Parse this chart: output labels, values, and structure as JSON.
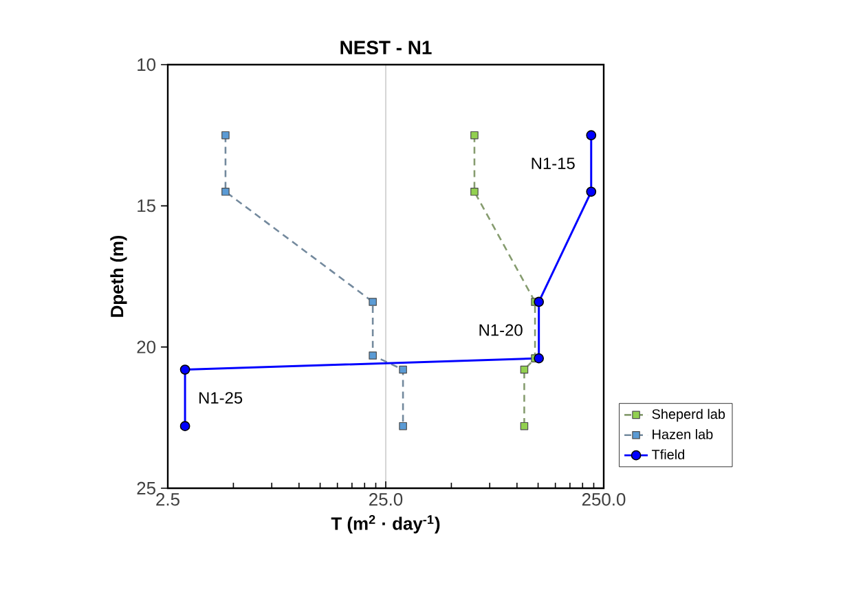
{
  "chart_data": {
    "type": "line",
    "title": "NEST - N1",
    "xlabel": "T (m$^{2}$ · day$^{-1}$)",
    "ylabel": "Dpeth (m)",
    "log": "x",
    "xlim": [
      2.5,
      250
    ],
    "xticks": [
      2.5,
      {
        "value": 25,
        "label": "25.0"
      },
      {
        "value": 250,
        "label": "250.0"
      }
    ],
    "ylim": [
      25,
      10
    ],
    "yticks": [
      10,
      15,
      20,
      25
    ],
    "grid": "x",
    "legend": "right",
    "series": [
      {
        "name": "Sheperd lab",
        "color": "#92d050",
        "marker": "square",
        "line_style": "dashed",
        "x": [
          63.8,
          63.8,
          121,
          121,
          108,
          108
        ],
        "values": [
          12.5,
          14.5,
          18.4,
          20.4,
          20.8,
          22.8
        ]
      },
      {
        "name": "Hazen lab",
        "color": "#5b9bd5",
        "marker": "square",
        "line_style": "dashed",
        "x": [
          4.6,
          4.6,
          21.8,
          21.8,
          30,
          30
        ],
        "values": [
          12.5,
          14.5,
          18.4,
          20.3,
          20.8,
          22.8
        ]
      },
      {
        "name": "Tfield",
        "color": "#0000ff",
        "marker": "circle",
        "line_style": "solid",
        "x": [
          219,
          219,
          126,
          126,
          3.0,
          3.0
        ],
        "values": [
          12.5,
          14.5,
          18.4,
          20.4,
          20.8,
          22.8
        ]
      }
    ],
    "annotations": [
      "N1-15",
      "N1-20",
      "N1-25"
    ]
  }
}
